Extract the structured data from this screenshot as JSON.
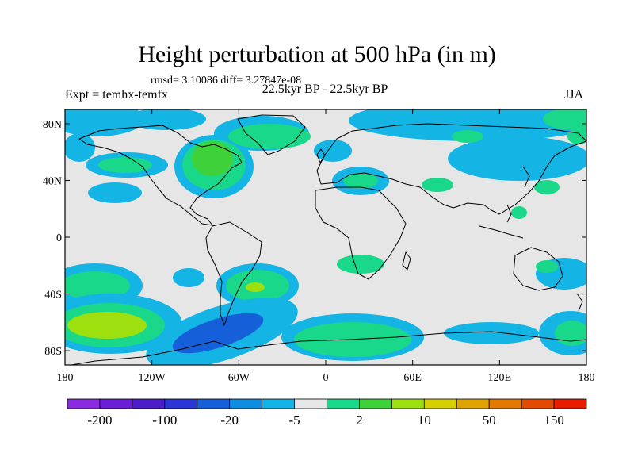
{
  "header": {
    "title": "Height perturbation at 500 hPa (in m)",
    "stats": "rmsd= 3.10086 diff= 3.27847e-08",
    "experiment": "Expt = temhx-temfx",
    "period": "22.5kyr BP - 22.5kyr BP",
    "season": "JJA"
  },
  "map": {
    "projection": "cylindrical-equidistant",
    "lon_range": [
      -180,
      180
    ],
    "lat_range": [
      -90,
      90
    ],
    "background_color": "#e6e6e6",
    "coastline_color": "#000000",
    "lat_ticks": [
      {
        "value": 80,
        "label": "80N"
      },
      {
        "value": 40,
        "label": "40N"
      },
      {
        "value": 0,
        "label": "0"
      },
      {
        "value": -40,
        "label": "40S"
      },
      {
        "value": -80,
        "label": "80S"
      }
    ],
    "lon_ticks": [
      {
        "value": -180,
        "label": "180"
      },
      {
        "value": -120,
        "label": "120W"
      },
      {
        "value": -60,
        "label": "60W"
      },
      {
        "value": 0,
        "label": "0"
      },
      {
        "value": 60,
        "label": "60E"
      },
      {
        "value": 120,
        "label": "120E"
      },
      {
        "value": 180,
        "label": "180"
      }
    ]
  },
  "colorbar": {
    "colors": [
      "#8a2be2",
      "#6a1ed6",
      "#4b1ec9",
      "#2a37d6",
      "#1560d9",
      "#0f8ee0",
      "#14b4e4",
      "#e6e6e6",
      "#1ad88a",
      "#3fd13a",
      "#9ee00f",
      "#d7d000",
      "#e0a400",
      "#e07a00",
      "#e24a00",
      "#e81c00"
    ],
    "labels": [
      {
        "after_box": 1,
        "text": "-200"
      },
      {
        "after_box": 3,
        "text": "-100"
      },
      {
        "after_box": 5,
        "text": "-20"
      },
      {
        "after_box": 7,
        "text": "-5"
      },
      {
        "after_box": 9,
        "text": "2"
      },
      {
        "after_box": 11,
        "text": "10"
      },
      {
        "after_box": 13,
        "text": "50"
      },
      {
        "after_box": 15,
        "text": "150"
      }
    ]
  }
}
